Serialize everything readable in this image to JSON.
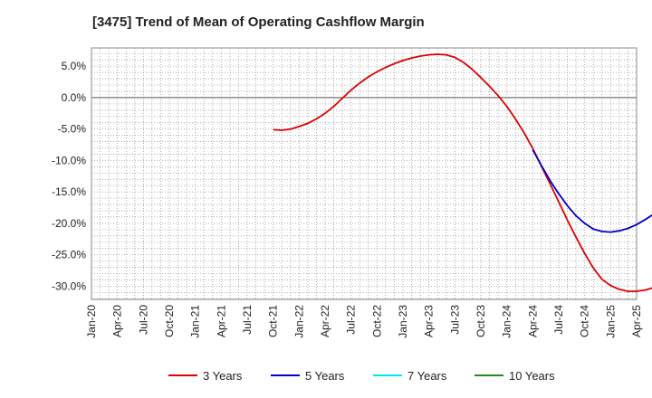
{
  "chart_data": {
    "type": "line",
    "title": "[3475]  Trend of Mean of Operating Cashflow Margin",
    "xlabel": "",
    "ylabel": "",
    "ylim": [
      -32.1,
      7.9
    ],
    "y_ticks": [
      5.0,
      0.0,
      -5.0,
      -10.0,
      -15.0,
      -20.0,
      -25.0,
      -30.0
    ],
    "y_tick_labels": [
      "5.0%",
      "0.0%",
      "-5.0%",
      "-10.0%",
      "-15.0%",
      "-20.0%",
      "-25.0%",
      "-30.0%"
    ],
    "x_ticks": [
      "Jan-20",
      "Apr-20",
      "Jul-20",
      "Oct-20",
      "Jan-21",
      "Apr-21",
      "Jul-21",
      "Oct-21",
      "Jan-22",
      "Apr-22",
      "Jul-22",
      "Oct-22",
      "Jan-23",
      "Apr-23",
      "Jul-23",
      "Oct-23",
      "Jan-24",
      "Apr-24",
      "Jul-24",
      "Oct-24",
      "Jan-25",
      "Apr-25"
    ],
    "grid": true,
    "legend_position": "bottom",
    "series": [
      {
        "name": "3 Years",
        "color": "#dd0000",
        "points": [
          [
            21,
            -5.1
          ],
          [
            22,
            -5.2
          ],
          [
            23,
            -5.0
          ],
          [
            24,
            -4.6
          ],
          [
            25,
            -4.1
          ],
          [
            26,
            -3.4
          ],
          [
            27,
            -2.5
          ],
          [
            28,
            -1.4
          ],
          [
            29,
            -0.1
          ],
          [
            30,
            1.2
          ],
          [
            31,
            2.3
          ],
          [
            32,
            3.3
          ],
          [
            33,
            4.1
          ],
          [
            34,
            4.8
          ],
          [
            35,
            5.4
          ],
          [
            36,
            5.9
          ],
          [
            37,
            6.3
          ],
          [
            38,
            6.6
          ],
          [
            39,
            6.8
          ],
          [
            40,
            6.9
          ],
          [
            41,
            6.8
          ],
          [
            42,
            6.4
          ],
          [
            43,
            5.6
          ],
          [
            44,
            4.5
          ],
          [
            45,
            3.2
          ],
          [
            46,
            1.8
          ],
          [
            47,
            0.3
          ],
          [
            48,
            -1.4
          ],
          [
            49,
            -3.4
          ],
          [
            50,
            -5.6
          ],
          [
            51,
            -8.1
          ],
          [
            52,
            -10.9
          ],
          [
            53,
            -13.7
          ],
          [
            54,
            -16.6
          ],
          [
            55,
            -19.5
          ],
          [
            56,
            -22.2
          ],
          [
            57,
            -24.8
          ],
          [
            58,
            -27.1
          ],
          [
            59,
            -28.9
          ],
          [
            60,
            -29.9
          ],
          [
            61,
            -30.5
          ],
          [
            62,
            -30.8
          ],
          [
            63,
            -30.8
          ],
          [
            64,
            -30.6
          ],
          [
            65,
            -30.2
          ]
        ]
      },
      {
        "name": "5 Years",
        "color": "#0000cc",
        "points": [
          [
            51,
            -8.3
          ],
          [
            52,
            -10.8
          ],
          [
            53,
            -13.2
          ],
          [
            54,
            -15.3
          ],
          [
            55,
            -17.2
          ],
          [
            56,
            -18.8
          ],
          [
            57,
            -20.0
          ],
          [
            58,
            -20.9
          ],
          [
            59,
            -21.3
          ],
          [
            60,
            -21.4
          ],
          [
            61,
            -21.2
          ],
          [
            62,
            -20.8
          ],
          [
            63,
            -20.2
          ],
          [
            64,
            -19.4
          ],
          [
            65,
            -18.5
          ],
          [
            66,
            -18.1
          ]
        ]
      },
      {
        "name": "7 Years",
        "color": "#00e5ee",
        "points": []
      },
      {
        "name": "10 Years",
        "color": "#228b22",
        "points": []
      }
    ]
  }
}
